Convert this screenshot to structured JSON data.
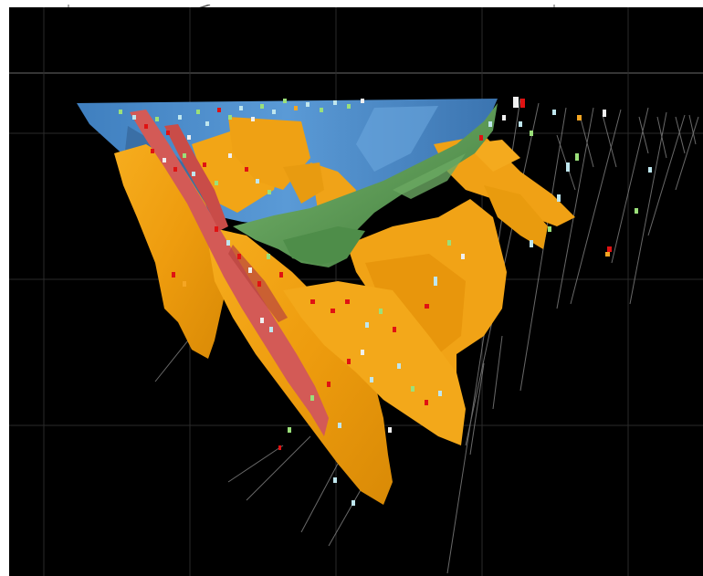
{
  "viewport": {
    "background": "#000000",
    "colors": {
      "orange_surface": "#F2A313",
      "blue_surface": "#4D8FCB",
      "green_surface": "#5E9A5A",
      "red_surface": "#D35A56",
      "drillhole_trace": "#9A9A9A",
      "sample_red": "#E01212",
      "sample_light_blue": "#BFE6EE",
      "sample_green": "#9BE07A",
      "sample_white": "#F0F0F0",
      "sample_orange": "#F5A623"
    }
  }
}
